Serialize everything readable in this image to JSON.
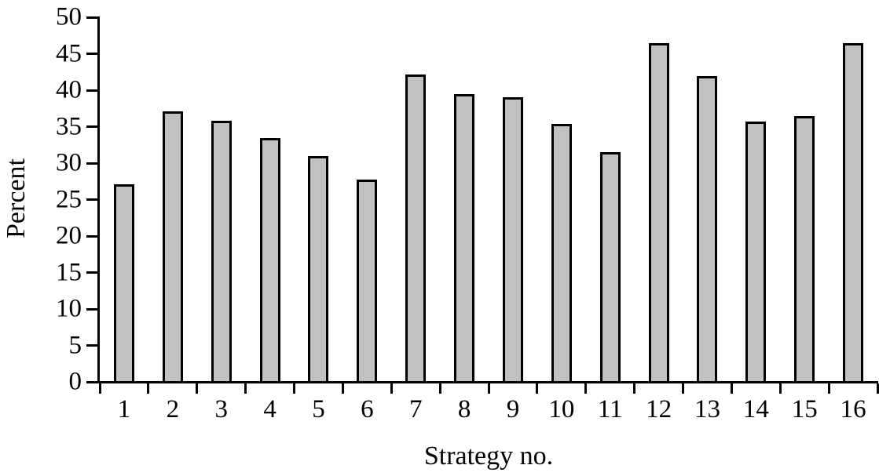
{
  "chart_data": {
    "type": "bar",
    "title": "",
    "categories": [
      "1",
      "2",
      "3",
      "4",
      "5",
      "6",
      "7",
      "8",
      "9",
      "10",
      "11",
      "12",
      "13",
      "14",
      "15",
      "16"
    ],
    "values": [
      27.1,
      37.1,
      35.8,
      33.4,
      31.0,
      27.7,
      42.2,
      39.5,
      39.0,
      35.4,
      31.5,
      46.5,
      41.9,
      35.7,
      36.5,
      46.5
    ],
    "xlabel": "Strategy no.",
    "ylabel": "Percent",
    "ylim": [
      0,
      50
    ],
    "y_ticks": [
      0,
      5,
      10,
      15,
      20,
      25,
      30,
      35,
      40,
      45,
      50
    ],
    "grid": false,
    "legend": null,
    "series_name": "Percent",
    "bar_fill_color": "#c1c1c1",
    "bar_border_color": "#000000",
    "axis_color": "#000000",
    "background_color": "#ffffff"
  }
}
